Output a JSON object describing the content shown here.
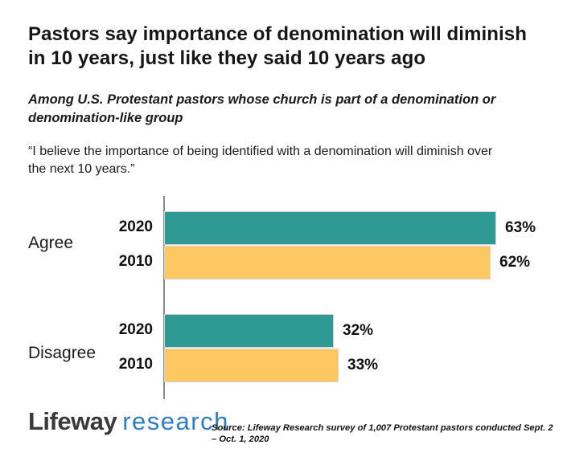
{
  "page": {
    "title_lines": [
      "Pastors say importance of denomination will diminish",
      "in 10 years, just like they said 10 years ago"
    ],
    "subtitle_lines": [
      "Among U.S. Protestant pastors whose church is part of a denomination or",
      "denomination-like group"
    ],
    "quote_lines": [
      "“I believe the importance of being identified with a denomination will diminish over",
      "the next 10 years.”"
    ]
  },
  "chart_data": {
    "type": "bar",
    "orientation": "horizontal",
    "categories": [
      "Agree",
      "Disagree"
    ],
    "series": [
      {
        "name": "2020",
        "values": [
          63,
          32
        ],
        "color": "#2F9A94"
      },
      {
        "name": "2010",
        "values": [
          62,
          33
        ],
        "color": "#FDC862"
      }
    ],
    "groups": [
      {
        "label": "Agree",
        "bars": [
          {
            "year": "2020",
            "value": 63
          },
          {
            "year": "2010",
            "value": 62
          }
        ]
      },
      {
        "label": "Disagree",
        "bars": [
          {
            "year": "2020",
            "value": 32
          },
          {
            "year": "2010",
            "value": 33
          }
        ]
      }
    ],
    "value_suffix": "%",
    "xlim": [
      0,
      75
    ],
    "grid": false,
    "legend": "none (years labeled per bar)"
  },
  "footer": {
    "logo_primary": "Lifeway",
    "logo_secondary": "research",
    "source": "Source: Lifeway Research survey of 1,007 Protestant pastors conducted Sept. 2 – Oct. 1, 2020"
  },
  "colors": {
    "bar_2020_teal": "#2F9A94",
    "bar_2010_yellow": "#FDC862",
    "bar_border": "#D6D6D6",
    "axis_gray": "#8A8A8A",
    "logo_charcoal": "#3A3A3C",
    "logo_blue": "#2E7CC1",
    "text": "#1A1A1A"
  }
}
